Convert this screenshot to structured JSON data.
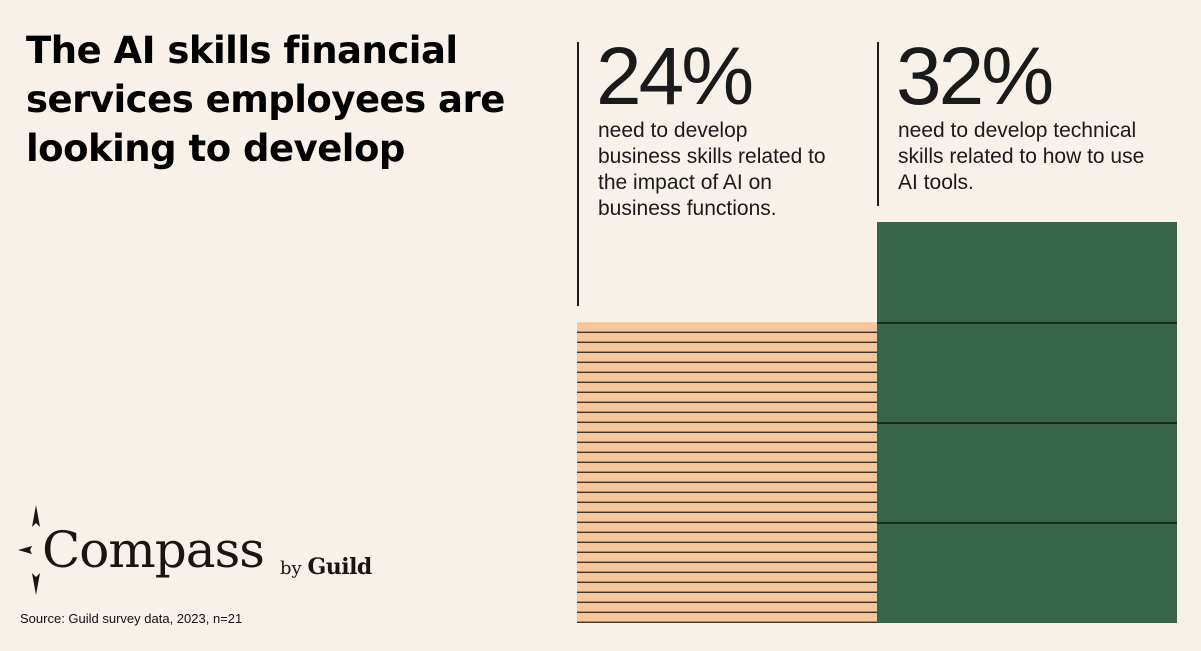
{
  "title": "The AI skills financial services employees are looking to develop",
  "stats": [
    {
      "value": "24%",
      "description": "need to develop business skills related to the impact of AI on business functions."
    },
    {
      "value": "32%",
      "description": "need to develop technical skills related to how to use AI tools."
    }
  ],
  "chart_data": {
    "type": "bar",
    "categories": [
      "business skills",
      "technical skills"
    ],
    "values": [
      24,
      32
    ],
    "colors": [
      "#f6c79a",
      "#37644a"
    ],
    "ylim": [
      0,
      32
    ],
    "grid": false
  },
  "logo": {
    "name": "Compass",
    "by": "by",
    "brand": "Guild"
  },
  "icons": {
    "logo": "compass-icon"
  },
  "source": "Source:  Guild survey data, 2023, n=21"
}
